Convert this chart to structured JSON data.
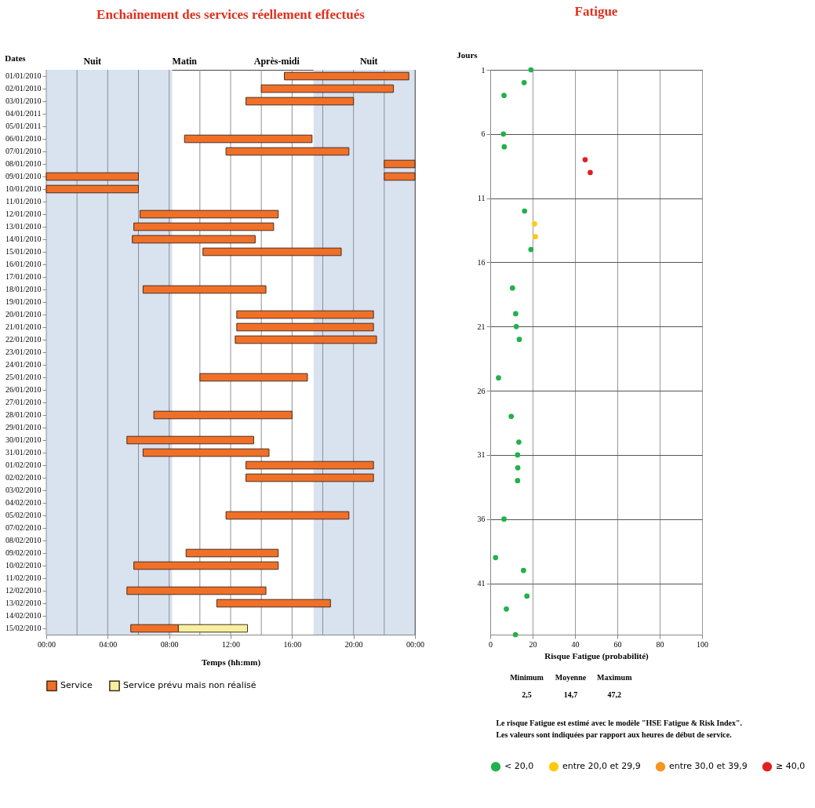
{
  "chart_data": [
    {
      "type": "bar",
      "orientation": "horizontal",
      "title": "Enchaînement des services réellement effectués",
      "xlabel": "Temps (hh:mm)",
      "ylabel": "Dates",
      "categories": [
        "01/01/2010",
        "02/01/2010",
        "03/01/2010",
        "04/01/2011",
        "05/01/2011",
        "06/01/2010",
        "07/01/2010",
        "08/01/2010",
        "09/01/2010",
        "10/01/2010",
        "11/01/2010",
        "12/01/2010",
        "13/01/2010",
        "14/01/2010",
        "15/01/2010",
        "16/01/2010",
        "17/01/2010",
        "18/01/2010",
        "19/01/2010",
        "20/01/2010",
        "21/01/2010",
        "22/01/2010",
        "23/01/2010",
        "24/01/2010",
        "25/01/2010",
        "26/01/2010",
        "27/01/2010",
        "28/01/2010",
        "29/01/2010",
        "30/01/2010",
        "31/01/2010",
        "01/02/2010",
        "02/02/2010",
        "03/02/2010",
        "04/02/2010",
        "05/02/2010",
        "07/02/2010",
        "08/02/2010",
        "09/02/2010",
        "10/02/2010",
        "11/02/2010",
        "12/02/2010",
        "13/02/2010",
        "14/02/2010",
        "15/02/2010"
      ],
      "series": [
        {
          "name": "Service",
          "color": "#f07028",
          "base": [
            15.5,
            14.0,
            13.0,
            null,
            null,
            9.0,
            11.7,
            22.0,
            0,
            0,
            null,
            6.1,
            5.7,
            5.6,
            10.2,
            null,
            null,
            6.3,
            null,
            12.4,
            12.4,
            12.3,
            null,
            null,
            10.0,
            null,
            null,
            7.0,
            null,
            5.25,
            6.3,
            13.0,
            13.0,
            null,
            null,
            11.7,
            null,
            null,
            9.1,
            5.7,
            null,
            5.25,
            11.1,
            null,
            5.5
          ],
          "values": [
            8.1,
            8.6,
            7.0,
            null,
            null,
            8.3,
            8.0,
            2.0,
            6.0,
            6.0,
            null,
            9.0,
            9.1,
            8.0,
            9.0,
            null,
            null,
            8.0,
            null,
            8.9,
            8.9,
            9.2,
            null,
            null,
            7.0,
            null,
            null,
            9.0,
            null,
            8.25,
            8.2,
            8.3,
            8.3,
            null,
            null,
            8.0,
            null,
            null,
            6.0,
            9.4,
            null,
            9.05,
            7.4,
            null,
            3.1
          ]
        },
        {
          "color": "#f07028",
          "base": [
            null,
            null,
            null,
            null,
            null,
            null,
            null,
            null,
            22.0,
            null,
            null,
            null,
            null,
            null,
            null,
            null,
            null,
            null,
            null,
            null,
            null,
            null,
            null,
            null,
            null,
            null,
            null,
            null,
            null,
            null,
            null,
            null,
            null,
            null,
            null,
            null,
            null,
            null,
            null,
            null,
            null,
            null,
            null,
            null,
            null
          ],
          "values": [
            null,
            null,
            null,
            null,
            null,
            null,
            null,
            null,
            2.0,
            null,
            null,
            null,
            null,
            null,
            null,
            null,
            null,
            null,
            null,
            null,
            null,
            null,
            null,
            null,
            null,
            null,
            null,
            null,
            null,
            null,
            null,
            null,
            null,
            null,
            null,
            null,
            null,
            null,
            null,
            null,
            null,
            null,
            null,
            null,
            null
          ]
        },
        {
          "name": "Service prévu mais non réalisé",
          "color": "#f5f0a0",
          "base": [
            null,
            null,
            null,
            null,
            null,
            null,
            null,
            null,
            null,
            null,
            null,
            null,
            null,
            null,
            null,
            null,
            null,
            null,
            null,
            null,
            null,
            null,
            null,
            null,
            null,
            null,
            null,
            null,
            null,
            null,
            null,
            null,
            null,
            null,
            null,
            null,
            null,
            null,
            null,
            null,
            null,
            null,
            null,
            null,
            8.6
          ],
          "values": [
            null,
            null,
            null,
            null,
            null,
            null,
            null,
            null,
            null,
            null,
            null,
            null,
            null,
            null,
            null,
            null,
            null,
            null,
            null,
            null,
            null,
            null,
            null,
            null,
            null,
            null,
            null,
            null,
            null,
            null,
            null,
            null,
            null,
            null,
            null,
            null,
            null,
            null,
            null,
            null,
            null,
            null,
            null,
            null,
            4.5
          ]
        }
      ],
      "xlim": [
        0,
        24
      ],
      "xticks": [
        {
          "value": 0,
          "label": "00:00"
        },
        {
          "value": 2,
          "label": null
        },
        {
          "value": 4,
          "label": "04:00"
        },
        {
          "value": 6,
          "label": null
        },
        {
          "value": 8,
          "label": "08:00"
        },
        {
          "value": 10,
          "label": null
        },
        {
          "value": 12,
          "label": "12:00"
        },
        {
          "value": 14,
          "label": null
        },
        {
          "value": 16,
          "label": "16:00"
        },
        {
          "value": 18,
          "label": null
        },
        {
          "value": 20,
          "label": "20:00"
        },
        {
          "value": 22,
          "label": null
        },
        {
          "value": 24,
          "label": "00:00"
        }
      ],
      "bands": [
        {
          "axis": "x",
          "from": 0,
          "to": 8.2,
          "color": "#d9e2ef"
        },
        {
          "axis": "x",
          "from": 17.4,
          "to": 24,
          "color": "#d9e2ef"
        }
      ],
      "annotations": [
        "Nuit",
        "Matin",
        "Après-midi",
        "Nuit"
      ],
      "grid": "x",
      "legend": "bottom"
    },
    {
      "type": "scatter",
      "title": "Fatigue",
      "xlabel": "Risque Fatigue (probabilité)",
      "ylabel": "Jours",
      "series": [
        {
          "name": "< 20,0",
          "color": "#22b14c",
          "x": [
            19.2,
            16.0,
            6.5,
            6.2,
            6.6,
            16.2,
            19.2,
            10.5,
            12.0,
            12.3,
            13.7,
            3.9,
            9.9,
            13.5,
            12.9,
            13.0,
            12.9,
            6.5,
            2.5,
            15.7,
            17.3,
            7.6,
            11.9
          ],
          "values": [
            1,
            2,
            3,
            6,
            7,
            12,
            15,
            18,
            20,
            21,
            22,
            25,
            28,
            30,
            31,
            32,
            33,
            36,
            39,
            40,
            42,
            43,
            45
          ]
        },
        {
          "name": "entre 20,0 et 29,9",
          "color": "#ffc90e",
          "x": [
            20.9,
            21.3
          ],
          "values": [
            13,
            14
          ]
        },
        {
          "name": "entre 30,0 et 39,9",
          "color": "#f7941d"
        },
        {
          "name": "≥ 40,0",
          "color": "#e02020",
          "x": [
            44.8,
            47.2
          ],
          "values": [
            8,
            9
          ]
        }
      ],
      "xlim": [
        0,
        100
      ],
      "xticks": [
        0,
        20,
        40,
        60,
        80,
        100
      ],
      "ylim": [
        45,
        1
      ],
      "yticks": [
        1,
        6,
        11,
        16,
        21,
        26,
        31,
        36,
        41
      ],
      "marker": "circle",
      "grid": true,
      "legend": "bottom",
      "annotations": [
        "Minimum",
        "Moyenne",
        "Maximum",
        "2,5",
        "14,7",
        "47,2",
        "Le risque Fatigue  est estimé avec le modèle \"HSE Fatigue & Risk Index\".",
        "Les valeurs sont indiquées par rapport aux heures de début de service."
      ]
    }
  ]
}
